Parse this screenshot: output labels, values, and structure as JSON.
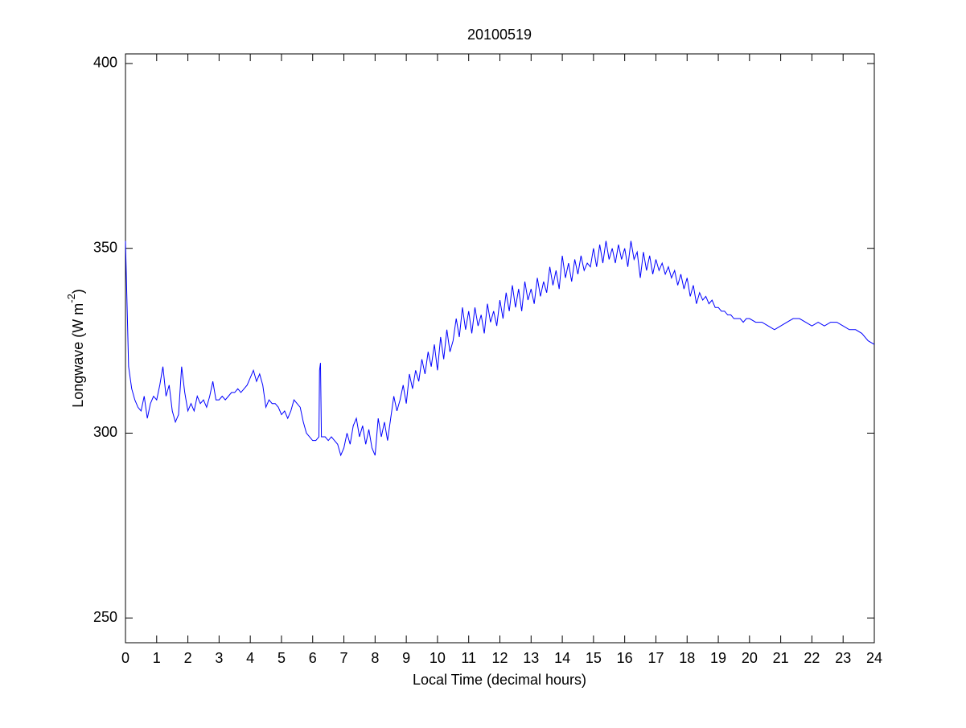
{
  "chart_data": {
    "type": "line",
    "title": "20100519",
    "xlabel": "Local Time (decimal hours)",
    "ylabel": {
      "text": "Longwave (W m",
      "superscript": "-2",
      "suffix": ")"
    },
    "color": "#0000ff",
    "xlim": [
      0,
      24
    ],
    "xticks": [
      0,
      1,
      2,
      3,
      4,
      5,
      6,
      7,
      8,
      9,
      10,
      11,
      12,
      13,
      14,
      15,
      16,
      17,
      18,
      19,
      20,
      21,
      22,
      23,
      24
    ],
    "ylim": [
      243.3,
      402.6
    ],
    "yticks": [
      250,
      300,
      350,
      400
    ],
    "x": [
      0,
      0.05,
      0.1,
      0.2,
      0.3,
      0.4,
      0.5,
      0.6,
      0.7,
      0.8,
      0.9,
      1.0,
      1.1,
      1.2,
      1.3,
      1.4,
      1.5,
      1.6,
      1.7,
      1.8,
      1.9,
      2.0,
      2.1,
      2.2,
      2.3,
      2.4,
      2.5,
      2.6,
      2.7,
      2.8,
      2.9,
      3.0,
      3.1,
      3.2,
      3.3,
      3.4,
      3.5,
      3.6,
      3.7,
      3.8,
      3.9,
      4.0,
      4.1,
      4.2,
      4.3,
      4.4,
      4.5,
      4.6,
      4.7,
      4.8,
      4.9,
      5.0,
      5.1,
      5.2,
      5.3,
      5.4,
      5.5,
      5.6,
      5.7,
      5.8,
      5.9,
      6.0,
      6.1,
      6.2,
      6.22,
      6.25,
      6.28,
      6.4,
      6.5,
      6.6,
      6.7,
      6.8,
      6.9,
      7.0,
      7.1,
      7.2,
      7.3,
      7.4,
      7.5,
      7.6,
      7.7,
      7.8,
      7.9,
      8.0,
      8.1,
      8.2,
      8.3,
      8.4,
      8.5,
      8.6,
      8.7,
      8.8,
      8.9,
      9.0,
      9.1,
      9.2,
      9.3,
      9.4,
      9.5,
      9.6,
      9.7,
      9.8,
      9.9,
      10.0,
      10.1,
      10.2,
      10.3,
      10.4,
      10.5,
      10.6,
      10.7,
      10.8,
      10.9,
      11.0,
      11.1,
      11.2,
      11.3,
      11.4,
      11.5,
      11.6,
      11.7,
      11.8,
      11.9,
      12.0,
      12.1,
      12.2,
      12.3,
      12.4,
      12.5,
      12.6,
      12.7,
      12.8,
      12.9,
      13.0,
      13.1,
      13.2,
      13.3,
      13.4,
      13.5,
      13.6,
      13.7,
      13.8,
      13.9,
      14.0,
      14.1,
      14.2,
      14.3,
      14.4,
      14.5,
      14.6,
      14.7,
      14.8,
      14.9,
      15.0,
      15.1,
      15.2,
      15.3,
      15.4,
      15.5,
      15.6,
      15.7,
      15.8,
      15.9,
      16.0,
      16.1,
      16.2,
      16.3,
      16.4,
      16.5,
      16.6,
      16.7,
      16.8,
      16.9,
      17.0,
      17.1,
      17.2,
      17.3,
      17.4,
      17.5,
      17.6,
      17.7,
      17.8,
      17.9,
      18.0,
      18.1,
      18.2,
      18.3,
      18.4,
      18.5,
      18.6,
      18.7,
      18.8,
      18.9,
      19.0,
      19.1,
      19.2,
      19.3,
      19.4,
      19.5,
      19.6,
      19.7,
      19.8,
      19.9,
      20.0,
      20.2,
      20.4,
      20.6,
      20.8,
      21.0,
      21.2,
      21.4,
      21.6,
      21.8,
      22.0,
      22.2,
      22.4,
      22.6,
      22.8,
      23.0,
      23.2,
      23.4,
      23.6,
      23.8,
      24.0
    ],
    "values": [
      352,
      335,
      318,
      312,
      309,
      307,
      306,
      310,
      304,
      308,
      310,
      309,
      313,
      318,
      310,
      313,
      306,
      303,
      305,
      318,
      311,
      306,
      308,
      306,
      310,
      308,
      309,
      307,
      310,
      314,
      309,
      309,
      310,
      309,
      310,
      311,
      311,
      312,
      311,
      312,
      313,
      315,
      317,
      314,
      316,
      313,
      307,
      309,
      308,
      308,
      307,
      305,
      306,
      304,
      306,
      309,
      308,
      307,
      303,
      300,
      299,
      298,
      298,
      299,
      317,
      319,
      299,
      299,
      298,
      299,
      298,
      297,
      294,
      296,
      300,
      297,
      302,
      304,
      299,
      302,
      297,
      301,
      296,
      294,
      304,
      299,
      303,
      298,
      304,
      310,
      306,
      309,
      313,
      308,
      316,
      312,
      317,
      314,
      320,
      316,
      322,
      318,
      324,
      317,
      326,
      320,
      328,
      322,
      325,
      331,
      326,
      334,
      328,
      333,
      327,
      334,
      329,
      332,
      327,
      335,
      330,
      333,
      329,
      336,
      331,
      338,
      333,
      340,
      334,
      339,
      333,
      341,
      336,
      339,
      335,
      342,
      337,
      341,
      338,
      345,
      340,
      344,
      339,
      348,
      342,
      346,
      341,
      347,
      343,
      348,
      344,
      346,
      345,
      350,
      345,
      351,
      346,
      352,
      347,
      350,
      346,
      351,
      347,
      350,
      345,
      352,
      347,
      349,
      342,
      349,
      344,
      348,
      343,
      347,
      344,
      346,
      343,
      345,
      342,
      344,
      340,
      343,
      339,
      342,
      337,
      340,
      335,
      338,
      336,
      337,
      335,
      336,
      334,
      334,
      333,
      333,
      332,
      332,
      331,
      331,
      331,
      330,
      331,
      331,
      330,
      330,
      329,
      328,
      329,
      330,
      331,
      331,
      330,
      329,
      330,
      329,
      330,
      330,
      329,
      328,
      328,
      327,
      325,
      324
    ]
  }
}
